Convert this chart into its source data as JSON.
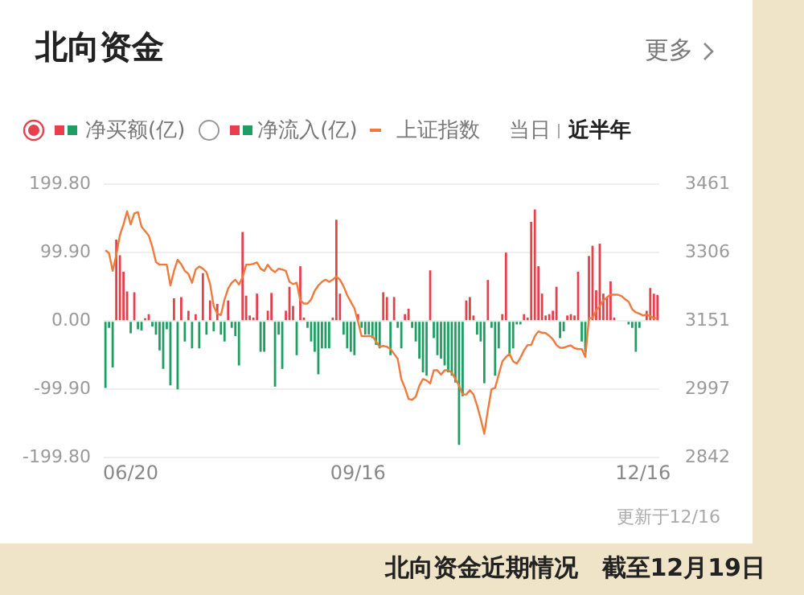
{
  "chart_data": {
    "type": "bar",
    "title": "北向资金",
    "categories": [
      null,
      null,
      null,
      null,
      null,
      null,
      null,
      "06/20",
      null,
      null,
      null,
      null,
      null,
      null,
      null,
      null,
      null,
      null,
      null,
      null,
      null,
      null,
      null,
      null,
      null,
      null,
      null,
      null,
      null,
      null,
      null,
      null,
      null,
      null,
      null,
      null,
      null,
      null,
      null,
      null,
      null,
      null,
      null,
      null,
      null,
      null,
      null,
      null,
      null,
      null,
      null,
      null,
      null,
      null,
      null,
      null,
      null,
      null,
      null,
      null,
      null,
      null,
      null,
      null,
      null,
      null,
      null,
      null,
      null,
      null,
      "09/16",
      null,
      null,
      null,
      null,
      null,
      null,
      null,
      null,
      null,
      null,
      null,
      null,
      null,
      null,
      null,
      null,
      null,
      null,
      null,
      null,
      null,
      null,
      null,
      null,
      null,
      null,
      null,
      null,
      null,
      null,
      null,
      null,
      null,
      null,
      null,
      null,
      null,
      null,
      null,
      null,
      null,
      null,
      null,
      null,
      null,
      null,
      null,
      null,
      null,
      null,
      null,
      null,
      null,
      null,
      null,
      null,
      null,
      null,
      null,
      null,
      null,
      null,
      null,
      null,
      null,
      null,
      null,
      null,
      null,
      null,
      null,
      null,
      null,
      null,
      null,
      null,
      null,
      null,
      "12/16",
      null,
      null,
      null,
      null
    ],
    "series": [
      {
        "name": "净买额(亿)",
        "values": [
          -98,
          -10,
          -68,
          119,
          96,
          72,
          43,
          -18,
          42,
          -12,
          -14,
          4,
          10,
          -8,
          -20,
          -43,
          -70,
          -12,
          -94,
          33,
          -100,
          35,
          -30,
          15,
          -40,
          10,
          -40,
          70,
          -20,
          30,
          -15,
          25,
          -20,
          -30,
          30,
          -10,
          -22,
          -65,
          130,
          37,
          8,
          5,
          40,
          -45,
          -45,
          15,
          41,
          -96,
          -20,
          -70,
          15,
          50,
          22,
          -50,
          80,
          5,
          -10,
          -30,
          -45,
          -78,
          -40,
          -40,
          -40,
          5,
          148,
          40,
          -20,
          -40,
          -45,
          -50,
          10,
          -10,
          -20,
          -20,
          -25,
          -35,
          -40,
          42,
          35,
          -50,
          35,
          -10,
          -40,
          10,
          18,
          -10,
          -30,
          -55,
          -75,
          -80,
          74,
          -25,
          -50,
          -55,
          -65,
          -75,
          -80,
          -90,
          -181,
          -110,
          30,
          35,
          8,
          -20,
          -30,
          -91,
          60,
          -10,
          -80,
          -40,
          10,
          100,
          -50,
          -40,
          -5,
          -5,
          10,
          5,
          145,
          163,
          80,
          40,
          8,
          10,
          15,
          50,
          -25,
          -15,
          8,
          10,
          8,
          72,
          -30,
          -45,
          95,
          110,
          45,
          113,
          40,
          35,
          58,
          5,
          1,
          null,
          null,
          -5,
          -10,
          -45,
          -10,
          1,
          15,
          48,
          40,
          38
        ],
        "colors": [
          "#1e9e63",
          "#1e9e63",
          "#1e9e63",
          "#e5404b",
          "#e5404b",
          "#e5404b",
          "#e5404b",
          "#1e9e63",
          "#e5404b",
          "#1e9e63",
          "#1e9e63",
          "#e5404b",
          "#e5404b",
          "#1e9e63",
          "#1e9e63",
          "#1e9e63",
          "#1e9e63",
          "#1e9e63",
          "#1e9e63",
          "#e5404b",
          "#1e9e63",
          "#e5404b",
          "#1e9e63",
          "#e5404b",
          "#1e9e63",
          "#e5404b",
          "#1e9e63",
          "#e5404b",
          "#1e9e63",
          "#e5404b",
          "#1e9e63",
          "#e5404b",
          "#1e9e63",
          "#1e9e63",
          "#e5404b",
          "#1e9e63",
          "#1e9e63",
          "#1e9e63",
          "#e5404b",
          "#e5404b",
          "#e5404b",
          "#e5404b",
          "#e5404b",
          "#1e9e63",
          "#1e9e63",
          "#e5404b",
          "#e5404b",
          "#1e9e63",
          "#1e9e63",
          "#1e9e63",
          "#e5404b",
          "#e5404b",
          "#e5404b",
          "#1e9e63",
          "#e5404b",
          "#e5404b",
          "#1e9e63",
          "#1e9e63",
          "#1e9e63",
          "#1e9e63",
          "#1e9e63",
          "#1e9e63",
          "#1e9e63",
          "#e5404b",
          "#e5404b",
          "#e5404b",
          "#1e9e63",
          "#1e9e63",
          "#1e9e63",
          "#1e9e63",
          "#e5404b",
          "#1e9e63",
          "#1e9e63",
          "#1e9e63",
          "#1e9e63",
          "#1e9e63",
          "#1e9e63",
          "#e5404b",
          "#e5404b",
          "#1e9e63",
          "#e5404b",
          "#1e9e63",
          "#1e9e63",
          "#e5404b",
          "#e5404b",
          "#1e9e63",
          "#1e9e63",
          "#1e9e63",
          "#1e9e63",
          "#1e9e63",
          "#e5404b",
          "#1e9e63",
          "#1e9e63",
          "#1e9e63",
          "#1e9e63",
          "#1e9e63",
          "#1e9e63",
          "#1e9e63",
          "#1e9e63",
          "#1e9e63",
          "#e5404b",
          "#e5404b",
          "#e5404b",
          "#1e9e63",
          "#1e9e63",
          "#1e9e63",
          "#e5404b",
          "#1e9e63",
          "#1e9e63",
          "#1e9e63",
          "#e5404b",
          "#e5404b",
          "#1e9e63",
          "#1e9e63",
          "#1e9e63",
          "#1e9e63",
          "#e5404b",
          "#e5404b",
          "#e5404b",
          "#e5404b",
          "#e5404b",
          "#e5404b",
          "#e5404b",
          "#e5404b",
          "#e5404b",
          "#e5404b",
          "#1e9e63",
          "#1e9e63",
          "#e5404b",
          "#e5404b",
          "#e5404b",
          "#e5404b",
          "#1e9e63",
          "#1e9e63",
          "#e5404b",
          "#e5404b",
          "#e5404b",
          "#e5404b",
          "#e5404b",
          "#e5404b",
          "#e5404b",
          "#e5404b",
          "#e5404b",
          "#e5404b",
          "#e5404b",
          "#1e9e63",
          "#1e9e63",
          "#1e9e63",
          "#1e9e63",
          "#e5404b",
          "#e5404b",
          "#e5404b",
          "#e5404b",
          "#e5404b"
        ]
      },
      {
        "name": "上证指数",
        "type": "line",
        "axis": "y2",
        "color": "#ef7a3c",
        "values": [
          3312,
          3305,
          3265,
          3300,
          3346,
          3370,
          3400,
          3370,
          3395,
          3398,
          3365,
          3355,
          3345,
          3319,
          3285,
          3279,
          3279,
          3279,
          3232,
          3265,
          3290,
          3280,
          3265,
          3258,
          3238,
          3268,
          3275,
          3270,
          3262,
          3235,
          3185,
          3168,
          3165,
          3200,
          3225,
          3238,
          3245,
          3234,
          3250,
          3279,
          3279,
          3281,
          3284,
          3270,
          3265,
          3279,
          3268,
          3262,
          3270,
          3268,
          3265,
          3240,
          3235,
          3238,
          3198,
          3191,
          3191,
          3200,
          3220,
          3232,
          3240,
          3245,
          3240,
          3245,
          3252,
          3245,
          3230,
          3210,
          3195,
          3180,
          3150,
          3117,
          3117,
          3117,
          3117,
          3105,
          3093,
          3095,
          3093,
          3088,
          3077,
          3066,
          3020,
          3000,
          2975,
          2973,
          2980,
          3005,
          3020,
          3017,
          3010,
          3040,
          3040,
          3030,
          3040,
          3040,
          3035,
          3020,
          3005,
          2985,
          2985,
          2995,
          2985,
          2960,
          2930,
          2896,
          2950,
          2997,
          3000,
          3030,
          3060,
          3070,
          3077,
          3060,
          3055,
          3068,
          3085,
          3097,
          3097,
          3117,
          3128,
          3125,
          3124,
          3118,
          3110,
          3097,
          3091,
          3091,
          3094,
          3096,
          3090,
          3088,
          3088,
          3070,
          3158,
          3158,
          3175,
          3185,
          3198,
          3205,
          3211,
          3211,
          3211,
          3208,
          3201,
          3195,
          3178,
          3171,
          3168,
          3164,
          3166,
          3162,
          3158,
          3158
        ]
      }
    ],
    "ylim": [
      -199.8,
      199.8
    ],
    "yticks": [
      {
        "value": 199.8,
        "label": "199.80"
      },
      {
        "value": 99.9,
        "label": "99.90"
      },
      {
        "value": 0,
        "label": "0.00"
      },
      {
        "value": -99.9,
        "label": "-99.90"
      },
      {
        "value": -199.8,
        "label": "-199.80"
      }
    ],
    "y2lim": [
      2842,
      3461
    ],
    "y2ticks": [
      2842,
      2997,
      3151,
      3306,
      3461
    ],
    "grid": "y",
    "legend": "top",
    "marker": "none",
    "annotations": [
      "更多",
      "净流入(亿)",
      "当日",
      "近半年",
      "更新于12/16",
      "北向资金近期情况　截至12月19日"
    ]
  }
}
